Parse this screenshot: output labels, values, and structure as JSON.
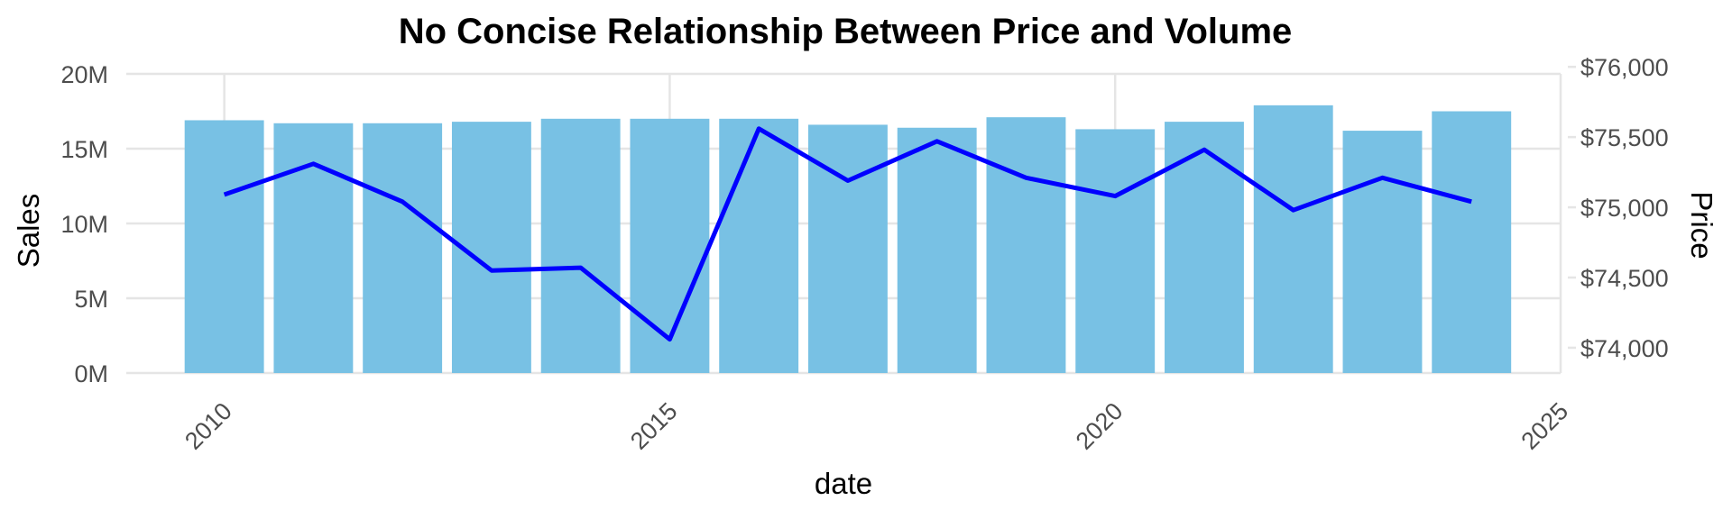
{
  "colors": {
    "bars": "#78c1e4",
    "line": "#0000ff",
    "grid": "#e5e5e5",
    "tick_text": "#4d4d4d",
    "title_text": "#000000"
  },
  "chart_data": {
    "type": "bar",
    "title": "No Concise Relationship Between Price and Volume",
    "xlabel": "date",
    "ylabel": "Sales",
    "y2label": "Price",
    "x_ticks": [
      "2010",
      "2015",
      "2020",
      "2025"
    ],
    "y_ticks": [
      "0M",
      "5M",
      "10M",
      "15M",
      "20M"
    ],
    "y2_ticks": [
      "$74,000",
      "$74,500",
      "$75,000",
      "$75,500",
      "$76,000"
    ],
    "xlim": [
      2008.9,
      2025
    ],
    "ylim": [
      0,
      20000000
    ],
    "y2lim": [
      73820,
      75950
    ],
    "grid": true,
    "legend": "none",
    "series": [
      {
        "kind": "bar",
        "axis": "left",
        "x": [
          2010,
          2011,
          2012,
          2013,
          2014,
          2015,
          2016,
          2017,
          2018,
          2019,
          2020,
          2021,
          2022,
          2023,
          2024
        ],
        "values": [
          16900000,
          16700000,
          16700000,
          16800000,
          17000000,
          17000000,
          17000000,
          16600000,
          16400000,
          17100000,
          16300000,
          16800000,
          17900000,
          16200000,
          17500000
        ]
      },
      {
        "kind": "line",
        "axis": "right",
        "x": [
          2010,
          2011,
          2012,
          2013,
          2014,
          2015,
          2016,
          2017,
          2018,
          2019,
          2020,
          2021,
          2022,
          2023,
          2024
        ],
        "values": [
          75090,
          75310,
          75040,
          74550,
          74570,
          74060,
          75560,
          75190,
          75470,
          75210,
          75080,
          75410,
          74980,
          75210,
          75040
        ]
      }
    ]
  }
}
